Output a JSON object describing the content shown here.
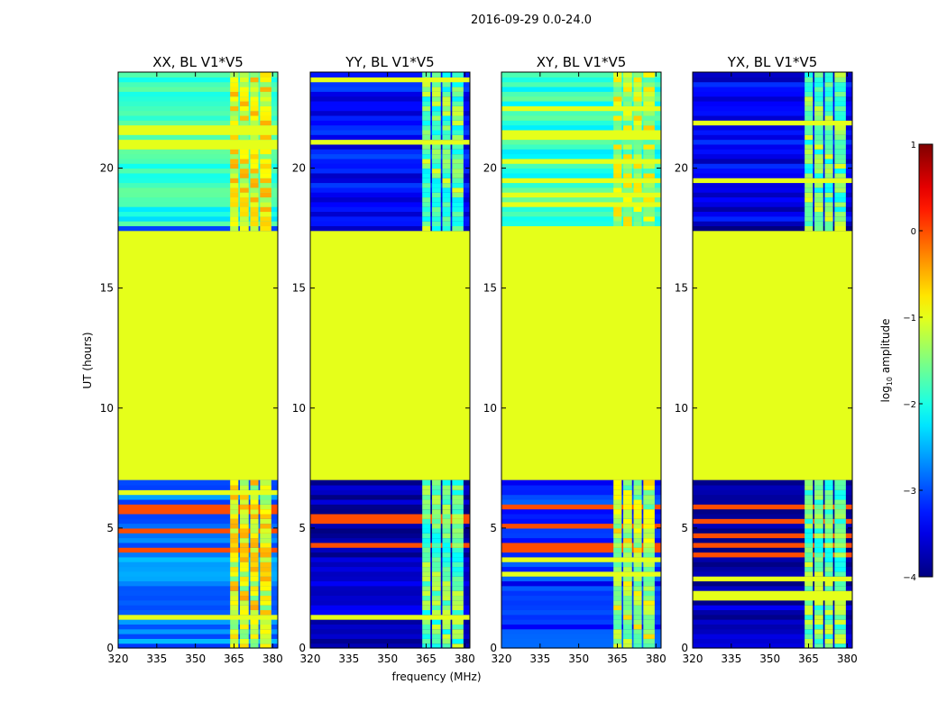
{
  "figure": {
    "suptitle": "2016-09-29 0.0-24.0",
    "xlabel": "frequency (MHz)",
    "ylabel": "UT (hours)"
  },
  "chart_data": {
    "type": "heatmap",
    "title": "2016-09-29 0.0-24.0",
    "x_unit": "MHz",
    "y_unit": "hours",
    "xlim": [
      320,
      382
    ],
    "ylim": [
      0,
      24
    ],
    "x_ticks": [
      320,
      335,
      350,
      365,
      380
    ],
    "y_ticks": [
      0,
      5,
      10,
      15,
      20
    ],
    "panels": [
      {
        "title": "XX, BL V1*V5",
        "floor": -2.7,
        "rfi": -1.0,
        "upper": -1.9
      },
      {
        "title": "YY, BL V1*V5",
        "floor": -3.6,
        "rfi": -1.6,
        "upper": -3.3
      },
      {
        "title": "XY, BL V1*V5",
        "floor": -3.1,
        "rfi": -1.2,
        "upper": -1.9
      },
      {
        "title": "YX, BL V1*V5",
        "floor": -3.7,
        "rfi": -1.6,
        "upper": -3.4
      }
    ],
    "flagged_interval_hours": [
      7.0,
      17.5
    ],
    "flagged_value": -1.0,
    "rfi_band_mhz": [
      363.5,
      379.5
    ],
    "colorbar": {
      "label": "log10 amplitude",
      "label_base": "log",
      "label_sub": "10",
      "label_rest": " amplitude",
      "range": [
        -4,
        1
      ],
      "ticks": [
        "1",
        "0",
        "−1",
        "−2",
        "−3",
        "−4"
      ],
      "colormap": "jet"
    }
  }
}
